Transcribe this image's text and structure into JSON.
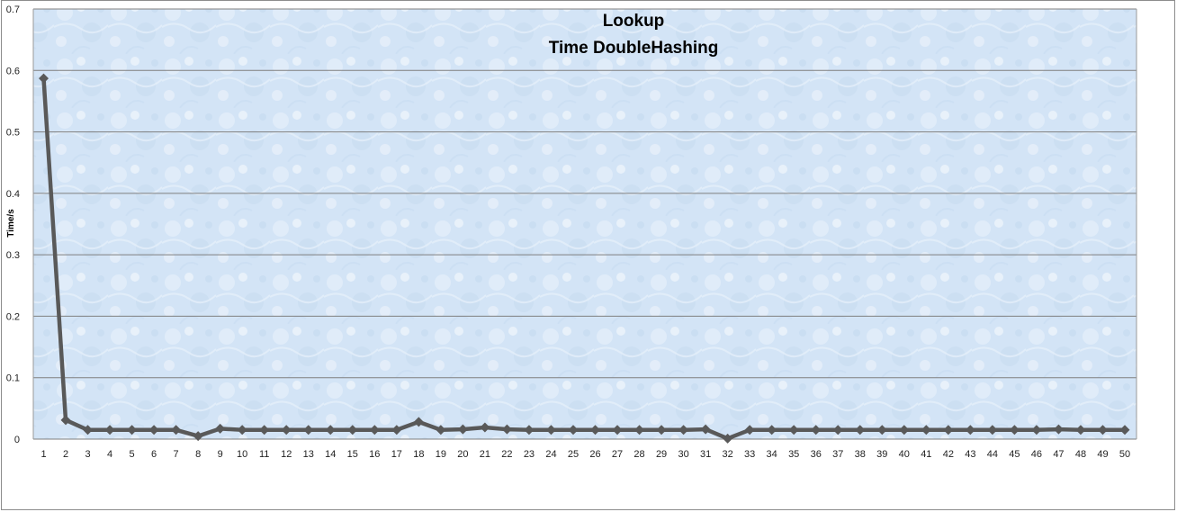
{
  "chart_data": {
    "type": "line",
    "title_lines": [
      "Lookup",
      "Time DoubleHashing"
    ],
    "xlabel": "",
    "ylabel": "Time/s",
    "ylim": [
      0,
      0.7
    ],
    "yticks": [
      "0",
      "0.1",
      "0.2",
      "0.3",
      "0.4",
      "0.5",
      "0.6",
      "0.7"
    ],
    "grid": true,
    "legend": "none",
    "colors": {
      "line": "#595959",
      "marker": "#595959",
      "gridline": "#7f7f7f",
      "plot_bg": "#d6e6f7"
    },
    "categories": [
      "1",
      "2",
      "3",
      "4",
      "5",
      "6",
      "7",
      "8",
      "9",
      "10",
      "11",
      "12",
      "13",
      "14",
      "15",
      "16",
      "17",
      "18",
      "19",
      "20",
      "21",
      "22",
      "23",
      "24",
      "25",
      "26",
      "27",
      "28",
      "29",
      "30",
      "31",
      "32",
      "33",
      "34",
      "35",
      "36",
      "37",
      "38",
      "39",
      "40",
      "41",
      "42",
      "43",
      "44",
      "45",
      "46",
      "47",
      "48",
      "49",
      "50"
    ],
    "series": [
      {
        "values": [
          0.587,
          0.031,
          0.015,
          0.015,
          0.015,
          0.015,
          0.015,
          0.005,
          0.017,
          0.015,
          0.015,
          0.015,
          0.015,
          0.015,
          0.015,
          0.015,
          0.015,
          0.028,
          0.015,
          0.016,
          0.019,
          0.016,
          0.015,
          0.015,
          0.015,
          0.015,
          0.015,
          0.015,
          0.015,
          0.015,
          0.016,
          0.001,
          0.015,
          0.015,
          0.015,
          0.015,
          0.015,
          0.015,
          0.015,
          0.015,
          0.015,
          0.015,
          0.015,
          0.015,
          0.015,
          0.015,
          0.016,
          0.015,
          0.015,
          0.015
        ]
      }
    ]
  }
}
